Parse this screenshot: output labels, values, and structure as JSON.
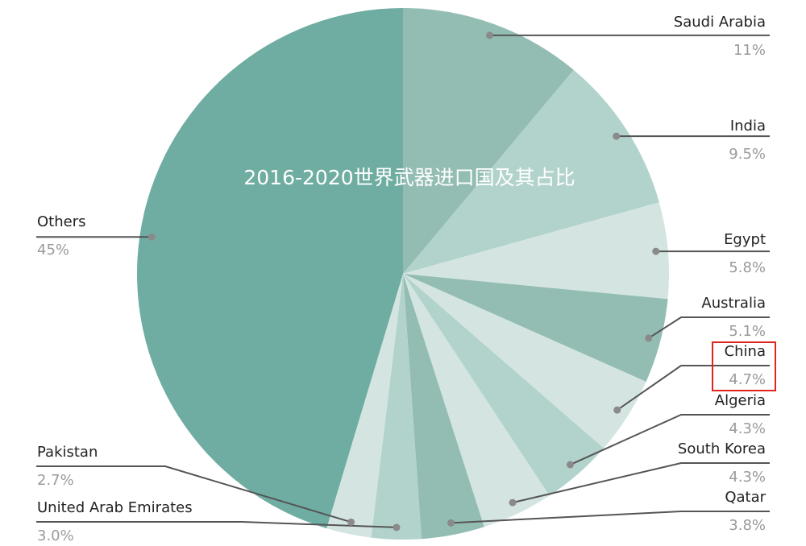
{
  "chart_data": {
    "type": "pie",
    "title": "2016-2020世界武器进口国及其占比",
    "categories": [
      "Saudi Arabia",
      "India",
      "Egypt",
      "Australia",
      "China",
      "Algeria",
      "South Korea",
      "Qatar",
      "United Arab Emirates",
      "Pakistan",
      "Others"
    ],
    "values": [
      11,
      9.5,
      5.8,
      5.1,
      4.7,
      4.3,
      4.3,
      3.8,
      3.0,
      2.7,
      45
    ],
    "value_labels": [
      "11%",
      "9.5%",
      "5.8%",
      "5.1%",
      "4.7%",
      "4.3%",
      "4.3%",
      "3.8%",
      "3.0%",
      "2.7%",
      "45%"
    ],
    "colors": [
      "#93bdb3",
      "#b2d3cc",
      "#d4e5e1",
      "#93bdb3",
      "#d4e5e1",
      "#b2d3cc",
      "#d4e5e1",
      "#93bdb3",
      "#b2d3cc",
      "#d4e5e1",
      "#6fada2"
    ]
  }
}
